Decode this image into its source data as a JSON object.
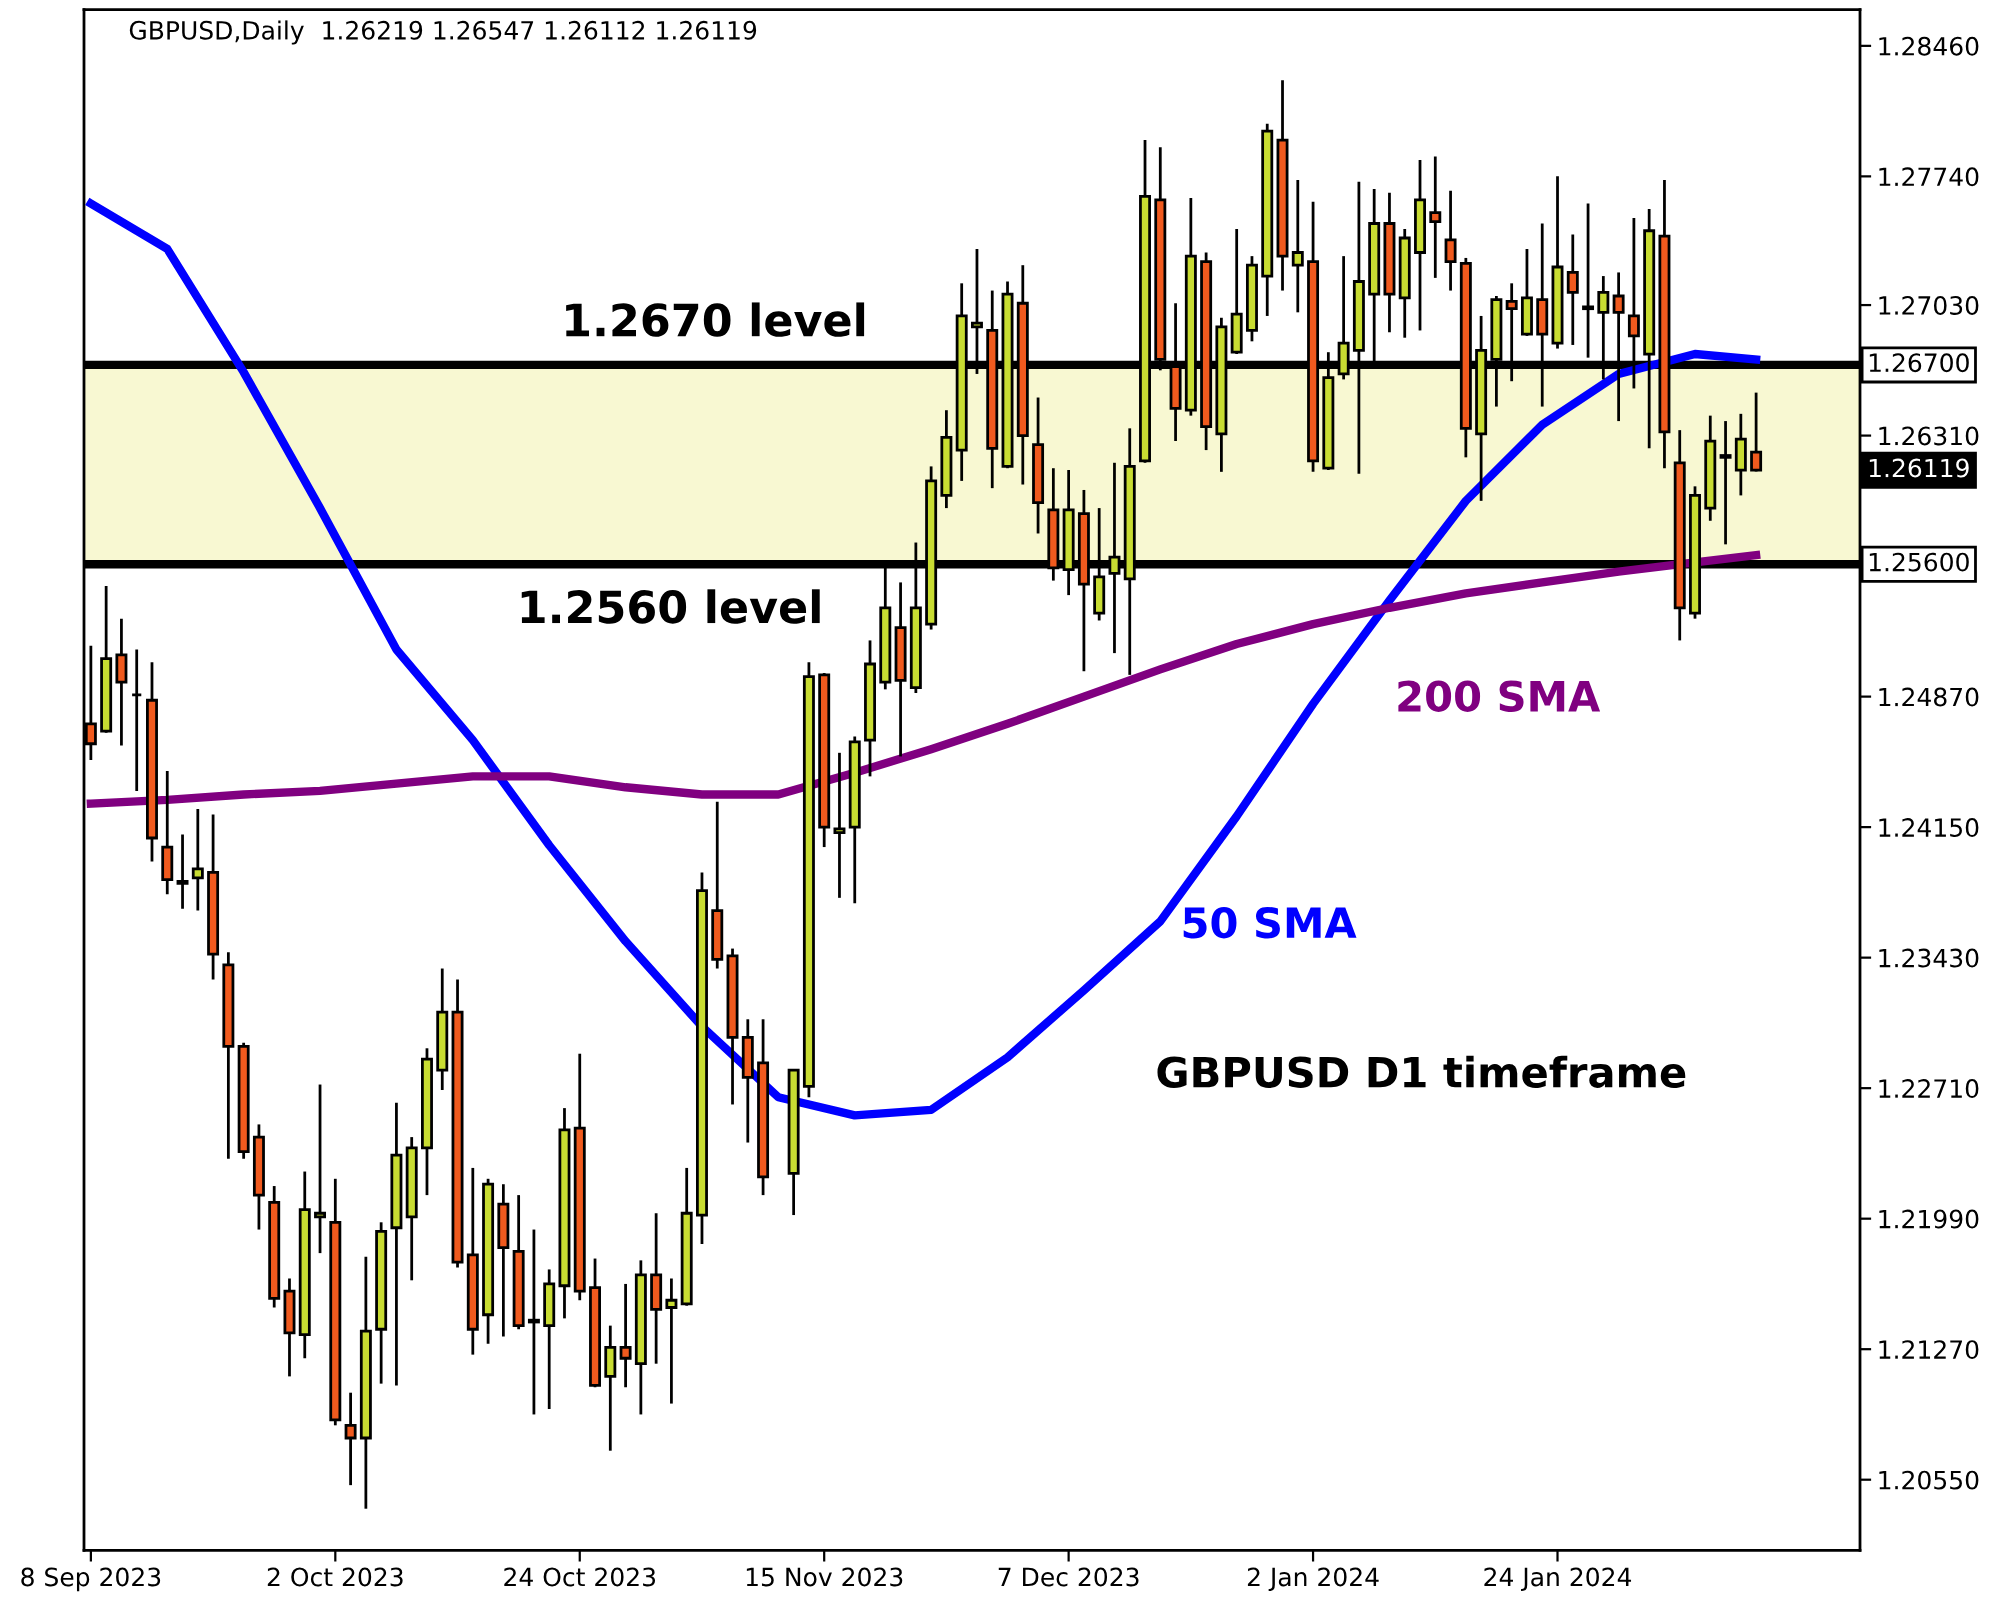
{
  "chart_data": {
    "type": "candlestick",
    "title": "GBPUSD,Daily  1.26219 1.26547 1.26112 1.26119",
    "categories": [
      "8 Sep 2023",
      null,
      null,
      null,
      null,
      null,
      null,
      null,
      null,
      null,
      null,
      null,
      null,
      null,
      null,
      null,
      "2 Oct 2023",
      null,
      null,
      null,
      null,
      null,
      null,
      null,
      null,
      null,
      null,
      null,
      null,
      null,
      null,
      null,
      "24 Oct 2023",
      null,
      null,
      null,
      null,
      null,
      null,
      null,
      null,
      null,
      null,
      null,
      null,
      null,
      null,
      null,
      "15 Nov 2023",
      null,
      null,
      null,
      null,
      null,
      null,
      null,
      null,
      null,
      null,
      null,
      null,
      null,
      null,
      null,
      "7 Dec 2023",
      null,
      null,
      null,
      null,
      null,
      null,
      null,
      null,
      null,
      null,
      null,
      null,
      null,
      null,
      null,
      "2 Jan 2024",
      null,
      null,
      null,
      null,
      null,
      null,
      null,
      null,
      null,
      null,
      null,
      null,
      null,
      null,
      null,
      "24 Jan 2024",
      null,
      null,
      null,
      null,
      null,
      null,
      null,
      null,
      null,
      null,
      null,
      null,
      null
    ],
    "ohlc": [
      [
        1.2472,
        1.2515,
        1.2452,
        1.2461
      ],
      [
        1.2468,
        1.2548,
        1.2467,
        1.2508
      ],
      [
        1.251,
        1.253,
        1.246,
        1.2495
      ],
      [
        1.2488,
        1.2513,
        1.2435,
        1.2488
      ],
      [
        1.2485,
        1.2506,
        1.2396,
        1.2409
      ],
      [
        1.2404,
        1.2446,
        1.2378,
        1.2386
      ],
      [
        1.2385,
        1.2411,
        1.237,
        1.2384
      ],
      [
        1.2387,
        1.2425,
        1.2369,
        1.2392
      ],
      [
        1.239,
        1.2422,
        1.2331,
        1.2345
      ],
      [
        1.2339,
        1.2346,
        1.2232,
        1.2294
      ],
      [
        1.2294,
        1.2296,
        1.2232,
        1.2236
      ],
      [
        1.2244,
        1.2251,
        1.2193,
        1.2212
      ],
      [
        1.2208,
        1.2217,
        1.215,
        1.2155
      ],
      [
        1.2159,
        1.2166,
        1.2112,
        1.2136
      ],
      [
        1.2135,
        1.2225,
        1.2122,
        1.2204
      ],
      [
        1.22,
        1.2273,
        1.218,
        1.2202
      ],
      [
        1.2197,
        1.2221,
        1.2085,
        1.2088
      ],
      [
        1.2085,
        1.2103,
        1.2052,
        1.2078
      ],
      [
        1.2078,
        1.2178,
        1.2039,
        1.2137
      ],
      [
        1.2138,
        1.2197,
        1.2108,
        1.2192
      ],
      [
        1.2194,
        1.2263,
        1.2107,
        1.2234
      ],
      [
        1.22,
        1.2244,
        1.2165,
        1.2238
      ],
      [
        1.2238,
        1.2293,
        1.2212,
        1.2287
      ],
      [
        1.2281,
        1.2337,
        1.227,
        1.2313
      ],
      [
        1.2313,
        1.2331,
        1.2172,
        1.2175
      ],
      [
        1.2179,
        1.2227,
        1.2124,
        1.2138
      ],
      [
        1.2146,
        1.2221,
        1.213,
        1.2218
      ],
      [
        1.2207,
        1.2218,
        1.2134,
        1.2183
      ],
      [
        1.2181,
        1.2212,
        1.2138,
        1.214
      ],
      [
        1.2143,
        1.2193,
        1.2091,
        1.2142
      ],
      [
        1.214,
        1.2171,
        1.2094,
        1.2163
      ],
      [
        1.2162,
        1.226,
        1.2144,
        1.2248
      ],
      [
        1.2249,
        1.229,
        1.2154,
        1.2159
      ],
      [
        1.2161,
        1.2177,
        1.2106,
        1.2107
      ],
      [
        1.2112,
        1.214,
        1.2071,
        1.2128
      ],
      [
        1.2128,
        1.2163,
        1.2106,
        1.2122
      ],
      [
        1.2119,
        1.2176,
        1.2091,
        1.2168
      ],
      [
        1.2168,
        1.2202,
        1.2119,
        1.2149
      ],
      [
        1.215,
        1.2166,
        1.2097,
        1.2154
      ],
      [
        1.2152,
        1.2227,
        1.2151,
        1.2202
      ],
      [
        1.2201,
        1.239,
        1.2185,
        1.238
      ],
      [
        1.2369,
        1.2429,
        1.2337,
        1.2342
      ],
      [
        1.2344,
        1.2348,
        1.2262,
        1.2299
      ],
      [
        1.2299,
        1.2309,
        1.2241,
        1.2277
      ],
      [
        1.2285,
        1.2309,
        1.2212,
        1.2222
      ],
      null,
      [
        1.2224,
        1.2281,
        1.2201,
        1.2281
      ],
      [
        1.2272,
        1.2506,
        1.2266,
        1.2498
      ],
      [
        1.2499,
        1.25,
        1.2404,
        1.2415
      ],
      [
        1.2412,
        1.2456,
        1.2376,
        1.2414
      ],
      [
        1.2415,
        1.2465,
        1.2373,
        1.2462
      ],
      [
        1.2463,
        1.2518,
        1.2443,
        1.2505
      ],
      [
        1.2495,
        1.2559,
        1.2491,
        1.2536
      ],
      [
        1.2525,
        1.255,
        1.2454,
        1.2496
      ],
      [
        1.2492,
        1.2572,
        1.2489,
        1.2536
      ],
      [
        1.2527,
        1.2614,
        1.2524,
        1.2606
      ],
      [
        1.2598,
        1.2645,
        1.2591,
        1.263
      ],
      [
        1.2623,
        1.2715,
        1.2606,
        1.2697
      ],
      [
        1.2691,
        1.2734,
        1.2665,
        1.2693
      ],
      [
        1.2689,
        1.2711,
        1.2602,
        1.2624
      ],
      [
        1.2614,
        1.2716,
        1.2613,
        1.2709
      ],
      [
        1.2704,
        1.2725,
        1.2604,
        1.2631
      ],
      [
        1.2626,
        1.2652,
        1.2577,
        1.2594
      ],
      [
        1.259,
        1.2613,
        1.2551,
        1.2558
      ],
      [
        1.2557,
        1.2612,
        1.2543,
        1.259
      ],
      [
        1.2588,
        1.2601,
        1.2501,
        1.2549
      ],
      [
        1.2533,
        1.2591,
        1.2529,
        1.2553
      ],
      [
        1.2555,
        1.2616,
        1.2511,
        1.2564
      ],
      [
        1.2552,
        1.2635,
        1.2499,
        1.2614
      ],
      [
        1.2617,
        1.2794,
        1.2616,
        1.2763
      ],
      [
        1.2761,
        1.279,
        1.2667,
        1.2673
      ],
      [
        1.2669,
        1.2704,
        1.2628,
        1.2646
      ],
      [
        1.2645,
        1.2762,
        1.2642,
        1.273
      ],
      [
        1.2727,
        1.2732,
        1.2623,
        1.2636
      ],
      [
        1.2632,
        1.2696,
        1.2611,
        1.2691
      ],
      [
        1.2677,
        1.2745,
        1.2676,
        1.2698
      ],
      [
        1.2689,
        1.273,
        1.2683,
        1.2725
      ],
      [
        1.2719,
        1.2803,
        1.2697,
        1.2799
      ],
      [
        1.2794,
        1.2827,
        1.2711,
        1.273
      ],
      [
        1.2725,
        1.2772,
        1.2699,
        1.2732
      ],
      [
        1.2727,
        1.276,
        1.2611,
        1.2617
      ],
      [
        1.2613,
        1.2677,
        1.2612,
        1.2663
      ],
      [
        1.2665,
        1.273,
        1.2662,
        1.2682
      ],
      [
        1.2678,
        1.2771,
        1.261,
        1.2716
      ],
      [
        1.2709,
        1.2767,
        1.2669,
        1.2748
      ],
      [
        1.2748,
        1.2765,
        1.2688,
        1.2709
      ],
      [
        1.2707,
        1.2745,
        1.2685,
        1.274
      ],
      [
        1.2732,
        1.2783,
        1.2689,
        1.2761
      ],
      [
        1.2754,
        1.2785,
        1.2718,
        1.2749
      ],
      [
        1.2739,
        1.2766,
        1.2711,
        1.2727
      ],
      [
        1.2726,
        1.2729,
        1.2619,
        1.2635
      ],
      [
        1.2632,
        1.2697,
        1.2595,
        1.2678
      ],
      [
        1.2673,
        1.2708,
        1.2647,
        1.2706
      ],
      [
        1.2705,
        1.2715,
        1.2661,
        1.2701
      ],
      [
        1.2687,
        1.2734,
        1.2686,
        1.2707
      ],
      [
        1.2706,
        1.2748,
        1.2647,
        1.2687
      ],
      [
        1.2682,
        1.2774,
        1.2679,
        1.2724
      ],
      [
        1.2721,
        1.2742,
        1.2681,
        1.271
      ],
      [
        1.2702,
        1.2759,
        1.2674,
        1.2701
      ],
      [
        1.2699,
        1.2719,
        1.2662,
        1.271
      ],
      [
        1.2708,
        1.2721,
        1.2639,
        1.2699
      ],
      [
        1.2697,
        1.2751,
        1.2657,
        1.2686
      ],
      [
        1.2676,
        1.2756,
        1.2624,
        1.2744
      ],
      [
        1.2741,
        1.2772,
        1.2613,
        1.2633
      ],
      [
        1.2616,
        1.2634,
        1.2518,
        1.2536
      ],
      [
        1.2533,
        1.2603,
        1.253,
        1.2598
      ],
      [
        1.2591,
        1.2642,
        1.2584,
        1.2628
      ],
      [
        1.2619,
        1.2639,
        1.2571,
        1.262
      ],
      [
        1.2612,
        1.2643,
        1.2598,
        1.2629
      ],
      [
        1.26219,
        1.26547,
        1.26112,
        1.26119
      ]
    ],
    "colors": [
      "#f05a1e",
      "#c8dc32",
      "#f05a1e",
      "#000000",
      "#f05a1e",
      "#f05a1e",
      "#f05a1e",
      "#c8dc32",
      "#f05a1e",
      "#f05a1e",
      "#f05a1e",
      "#f05a1e",
      "#f05a1e",
      "#f05a1e",
      "#c8dc32",
      "#c8dc32",
      "#f05a1e",
      "#f05a1e",
      "#c8dc32",
      "#c8dc32",
      "#c8dc32",
      "#c8dc32",
      "#c8dc32",
      "#c8dc32",
      "#f05a1e",
      "#f05a1e",
      "#c8dc32",
      "#f05a1e",
      "#f05a1e",
      "#f05a1e",
      "#c8dc32",
      "#c8dc32",
      "#f05a1e",
      "#f05a1e",
      "#c8dc32",
      "#f05a1e",
      "#c8dc32",
      "#f05a1e",
      "#c8dc32",
      "#c8dc32",
      "#c8dc32",
      "#f05a1e",
      "#f05a1e",
      "#f05a1e",
      "#f05a1e",
      null,
      "#c8dc32",
      "#c8dc32",
      "#f05a1e",
      "#c8dc32",
      "#c8dc32",
      "#c8dc32",
      "#c8dc32",
      "#f05a1e",
      "#c8dc32",
      "#c8dc32",
      "#c8dc32",
      "#c8dc32",
      "#c8dc32",
      "#f05a1e",
      "#c8dc32",
      "#f05a1e",
      "#f05a1e",
      "#f05a1e",
      "#c8dc32",
      "#f05a1e",
      "#c8dc32",
      "#c8dc32",
      "#c8dc32",
      "#c8dc32",
      "#f05a1e",
      "#f05a1e",
      "#c8dc32",
      "#f05a1e",
      "#c8dc32",
      "#c8dc32",
      "#c8dc32",
      "#c8dc32",
      "#f05a1e",
      "#c8dc32",
      "#f05a1e",
      "#c8dc32",
      "#c8dc32",
      "#c8dc32",
      "#c8dc32",
      "#f05a1e",
      "#c8dc32",
      "#c8dc32",
      "#f05a1e",
      "#f05a1e",
      "#f05a1e",
      "#c8dc32",
      "#c8dc32",
      "#f05a1e",
      "#c8dc32",
      "#f05a1e",
      "#c8dc32",
      "#f05a1e",
      "#f05a1e",
      "#c8dc32",
      "#f05a1e",
      "#f05a1e",
      "#c8dc32",
      "#f05a1e",
      "#f05a1e",
      "#c8dc32",
      "#c8dc32",
      "#c8dc32",
      "#c8dc32",
      "#f05a1e"
    ],
    "series": [
      {
        "type": "line",
        "name": "50 SMA",
        "color": "#0000ff",
        "values": [
          1.2759,
          null,
          null,
          null,
          null,
          1.2734,
          null,
          null,
          null,
          null,
          1.2666,
          null,
          null,
          null,
          null,
          1.2591,
          null,
          null,
          null,
          null,
          1.2513,
          null,
          null,
          null,
          null,
          1.2463,
          null,
          null,
          null,
          null,
          1.2405,
          null,
          null,
          null,
          null,
          1.2352,
          null,
          null,
          null,
          null,
          1.2305,
          null,
          null,
          null,
          null,
          1.2266,
          null,
          null,
          null,
          null,
          1.2256,
          null,
          null,
          null,
          null,
          1.2259,
          null,
          null,
          null,
          null,
          1.2288,
          null,
          null,
          null,
          null,
          1.2325,
          null,
          null,
          null,
          null,
          1.2363,
          null,
          null,
          null,
          null,
          1.2421,
          null,
          null,
          null,
          null,
          1.2483,
          null,
          null,
          null,
          null,
          1.254,
          null,
          null,
          null,
          null,
          1.2595,
          null,
          null,
          null,
          null,
          1.2637,
          null,
          null,
          null,
          null,
          1.2665,
          null,
          null,
          null,
          null,
          1.2676,
          null,
          null,
          null,
          1.2673
        ]
      },
      {
        "type": "line",
        "name": "200 SMA",
        "color": "#800080",
        "values": [
          1.2428,
          null,
          null,
          null,
          null,
          1.243,
          null,
          null,
          null,
          null,
          1.2433,
          null,
          null,
          null,
          null,
          1.2435,
          null,
          null,
          null,
          null,
          1.2439,
          null,
          null,
          null,
          null,
          1.2443,
          null,
          null,
          null,
          null,
          1.2443,
          null,
          null,
          null,
          null,
          1.2437,
          null,
          null,
          null,
          null,
          1.2433,
          null,
          null,
          null,
          null,
          1.2433,
          null,
          null,
          null,
          null,
          1.2445,
          null,
          null,
          null,
          null,
          1.2458,
          null,
          null,
          null,
          null,
          1.2472,
          null,
          null,
          null,
          null,
          1.2487,
          null,
          null,
          null,
          null,
          1.2502,
          null,
          null,
          null,
          null,
          1.2516,
          null,
          null,
          null,
          null,
          1.2527,
          null,
          null,
          null,
          null,
          1.2536,
          null,
          null,
          null,
          null,
          1.2544,
          null,
          null,
          null,
          null,
          1.255,
          null,
          null,
          null,
          null,
          1.2556,
          null,
          null,
          null,
          null,
          1.2561,
          null,
          null,
          null,
          1.2565
        ]
      }
    ],
    "ylim": [
      1.2016,
      1.2866
    ],
    "yticks": [
      {
        "value": 1.2055,
        "label": "1.20550"
      },
      {
        "value": 1.2127,
        "label": "1.21270"
      },
      {
        "value": 1.2199,
        "label": "1.21990"
      },
      {
        "value": 1.2271,
        "label": "1.22710"
      },
      {
        "value": 1.2343,
        "label": "1.23430"
      },
      {
        "value": 1.2415,
        "label": "1.24150"
      },
      {
        "value": 1.2487,
        "label": "1.24870"
      },
      {
        "value": 1.2631,
        "label": "1.26310"
      },
      {
        "value": 1.2703,
        "label": "1.27030"
      },
      {
        "value": 1.2774,
        "label": "1.27740"
      },
      {
        "value": 1.2846,
        "label": "1.28460"
      }
    ],
    "ref_lines": [
      {
        "axis": "y",
        "value": 1.267,
        "label": "1.26700",
        "color": "#000000"
      },
      {
        "axis": "y",
        "value": 1.256,
        "label": "1.25600",
        "color": "#000000"
      }
    ],
    "bands": [
      {
        "axis": "y",
        "from": 1.256,
        "to": 1.267,
        "color": "#f8f8d2"
      }
    ],
    "annotations": [
      {
        "text": "1.2670 level",
        "y": 1.267
      },
      {
        "text": "1.2560 level",
        "y": 1.256
      },
      "1.26119",
      "GBPUSD D1 timeframe"
    ]
  }
}
